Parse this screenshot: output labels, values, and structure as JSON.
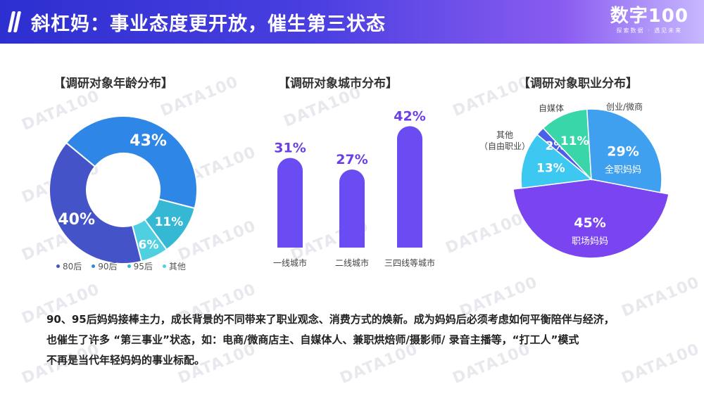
{
  "header": {
    "title": "斜杠妈：事业态度更开放，催生第三状态",
    "logo_main": "数字100",
    "logo_sub": "探索数据 · 遇见未来"
  },
  "watermark_text": "DATA100",
  "colors": {
    "header_start": "#2d2fd0",
    "header_end": "#8a5cf0",
    "donut_80": "#4453c8",
    "donut_90": "#2e86e6",
    "donut_95": "#35b8d4",
    "donut_other": "#4fd0e0",
    "bar": "#6a4cf2",
    "pie_full_time": "#3fa0f0",
    "pie_workplace": "#7a45f0",
    "pie_other": "#3cc8f0",
    "pie_selfmedia": "#4c5ee8",
    "pie_startup": "#38d6a8"
  },
  "chart_data": [
    {
      "type": "pie",
      "title": "【调研对象年龄分布】",
      "categories": [
        "80后",
        "90后",
        "95后",
        "其他"
      ],
      "values": [
        40,
        43,
        11,
        6
      ],
      "labels": [
        "40%",
        "43%",
        "11%",
        "6%"
      ],
      "donut": true,
      "legend_position": "bottom"
    },
    {
      "type": "bar",
      "title": "【调研对象城市分布】",
      "categories": [
        "一线城市",
        "二线城市",
        "三四线等城市"
      ],
      "values": [
        31,
        27,
        42
      ],
      "labels": [
        "31%",
        "27%",
        "42%"
      ],
      "ylim": [
        0,
        45
      ]
    },
    {
      "type": "pie",
      "title": "【调研对象职业分布】",
      "categories": [
        "职场妈妈",
        "其他（自由职业）",
        "自媒体",
        "创业/微商",
        "全职妈妈"
      ],
      "values": [
        45,
        13,
        2,
        11,
        29
      ],
      "labels": [
        "45%",
        "13%",
        "2%",
        "11%",
        "29%"
      ],
      "inner_labels": [
        "职场妈妈",
        "",
        "",
        "",
        "全职妈妈"
      ],
      "outer_labels": {
        "other_line1": "其他",
        "other_line2": "（自由职业）",
        "selfmedia": "自媒体",
        "startup": "创业/微商"
      }
    }
  ],
  "bottom_text": [
    "90、95后妈妈接棒主力，成长背景的不同带来了职业观念、消费方式的焕新。成为妈妈后必须考虑如何平衡陪伴与经济，",
    "也催生了许多 “第三事业”状态，如：电商/微商店主、自媒体人、兼职烘焙师/摄影师/ 录音主播等，“打工人”模式",
    "不再是当代年轻妈妈的事业标配。"
  ]
}
